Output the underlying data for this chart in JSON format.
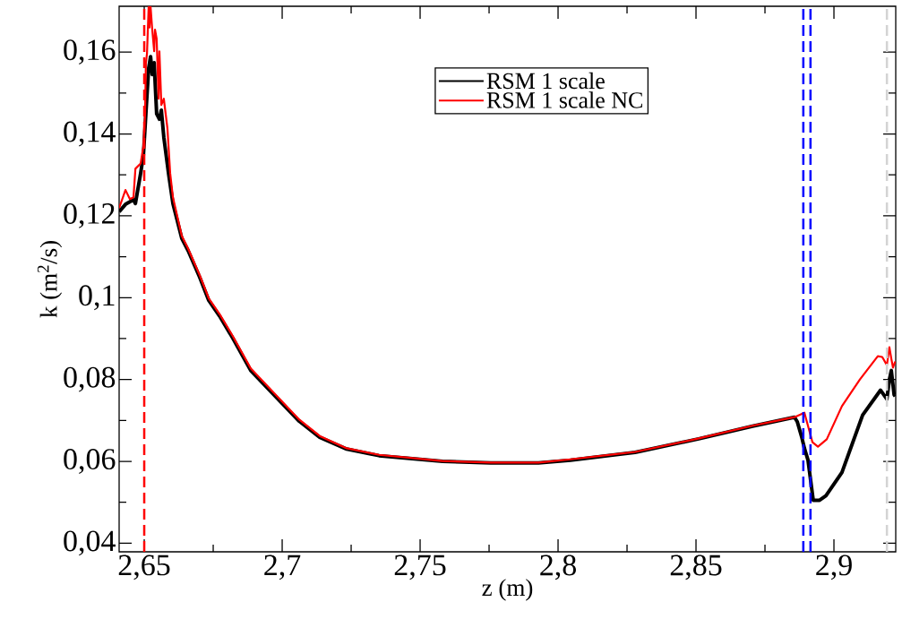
{
  "chart_data": {
    "type": "line",
    "xlabel": "z (m)",
    "ylabel": "k (m$^{2}$/s)",
    "xlim": [
      2.6409,
      2.9224
    ],
    "ylim": [
      0.0379,
      0.1712
    ],
    "xticks": [
      {
        "value": 2.65,
        "label": "2,65"
      },
      {
        "value": 2.7,
        "label": "2,7"
      },
      {
        "value": 2.75,
        "label": "2,75"
      },
      {
        "value": 2.8,
        "label": "2,8"
      },
      {
        "value": 2.85,
        "label": "2,85"
      },
      {
        "value": 2.9,
        "label": "2,9"
      }
    ],
    "yticks": [
      {
        "value": 0.04,
        "label": "0,04"
      },
      {
        "value": 0.06,
        "label": "0,06"
      },
      {
        "value": 0.08,
        "label": "0,08"
      },
      {
        "value": 0.1,
        "label": "0,1"
      },
      {
        "value": 0.12,
        "label": "0,12"
      },
      {
        "value": 0.14,
        "label": "0,14"
      },
      {
        "value": 0.16,
        "label": "0,16"
      }
    ],
    "grid": false,
    "legend": "top",
    "marker": "none",
    "line_style": "solid",
    "ref_lines": [
      {
        "axis": "x",
        "value": 2.65,
        "color": "#ff0000",
        "line_style": "dashed"
      },
      {
        "axis": "x",
        "value": 2.8889,
        "color": "#0000ff",
        "line_style": "dashed"
      },
      {
        "axis": "x",
        "value": 2.8915,
        "color": "#0000ff",
        "line_style": "dashed"
      },
      {
        "axis": "x",
        "value": 2.9192,
        "color": "#d3d3d3",
        "line_style": "dashed"
      }
    ],
    "series": [
      {
        "name": "RSM 1 scale",
        "color": "#000000",
        "x": [
          2.6409,
          2.6432,
          2.6461,
          2.6468,
          2.6487,
          2.6497,
          2.6506,
          2.6516,
          2.6523,
          2.6529,
          2.6536,
          2.6545,
          2.6555,
          2.6562,
          2.6571,
          2.6588,
          2.6604,
          2.6636,
          2.6659,
          2.6701,
          2.6734,
          2.6773,
          2.6821,
          2.6886,
          2.7062,
          2.7136,
          2.7234,
          2.7351,
          2.7581,
          2.7756,
          2.7929,
          2.8045,
          2.8279,
          2.851,
          2.8705,
          2.8857,
          2.8867,
          2.8883,
          2.8893,
          2.8906,
          2.8925,
          2.8948,
          2.8971,
          2.9029,
          2.9104,
          2.9169,
          2.9192,
          2.9201,
          2.9208,
          2.9218,
          2.9222
        ],
        "values": [
          0.121,
          0.1228,
          0.1239,
          0.123,
          0.1304,
          0.1348,
          0.145,
          0.156,
          0.1589,
          0.1545,
          0.1574,
          0.1449,
          0.1436,
          0.1458,
          0.1392,
          0.1304,
          0.123,
          0.1145,
          0.1115,
          0.105,
          0.0993,
          0.0955,
          0.0901,
          0.0822,
          0.0698,
          0.0659,
          0.063,
          0.0614,
          0.06,
          0.0596,
          0.0596,
          0.0603,
          0.0622,
          0.0655,
          0.0686,
          0.0708,
          0.0697,
          0.066,
          0.0632,
          0.0603,
          0.0505,
          0.0505,
          0.0516,
          0.0573,
          0.0713,
          0.0774,
          0.0752,
          0.08,
          0.0822,
          0.0763,
          0.0759
        ]
      },
      {
        "name": "RSM 1 scale NC",
        "color": "#ff0000",
        "x": [
          2.6409,
          2.6432,
          2.6448,
          2.6461,
          2.6468,
          2.6487,
          2.6497,
          2.6503,
          2.6506,
          2.651,
          2.6516,
          2.6519,
          2.6523,
          2.6529,
          2.6536,
          2.6539,
          2.6545,
          2.6552,
          2.6555,
          2.6562,
          2.6571,
          2.6584,
          2.6594,
          2.6604,
          2.6636,
          2.6659,
          2.6701,
          2.6734,
          2.6773,
          2.6821,
          2.6886,
          2.7062,
          2.7136,
          2.7234,
          2.7351,
          2.7581,
          2.7756,
          2.7929,
          2.8045,
          2.8279,
          2.851,
          2.8705,
          2.8857,
          2.8893,
          2.8922,
          2.8942,
          2.8974,
          2.9029,
          2.9094,
          2.9159,
          2.9175,
          2.9192,
          2.9201,
          2.9208,
          2.9214,
          2.9222
        ],
        "values": [
          0.1219,
          0.1263,
          0.1241,
          0.1245,
          0.1315,
          0.1328,
          0.137,
          0.1449,
          0.1574,
          0.1596,
          0.171,
          0.166,
          0.171,
          0.1655,
          0.1602,
          0.1655,
          0.1633,
          0.1486,
          0.1602,
          0.1471,
          0.1486,
          0.1414,
          0.1304,
          0.1245,
          0.1151,
          0.112,
          0.1055,
          0.0998,
          0.096,
          0.0906,
          0.0827,
          0.0702,
          0.0662,
          0.0632,
          0.0616,
          0.0601,
          0.0597,
          0.0597,
          0.0605,
          0.0623,
          0.0656,
          0.0687,
          0.0708,
          0.0719,
          0.0647,
          0.0636,
          0.0654,
          0.0735,
          0.08,
          0.0857,
          0.0855,
          0.0835,
          0.0879,
          0.0851,
          0.0829,
          0.0844
        ]
      }
    ]
  }
}
